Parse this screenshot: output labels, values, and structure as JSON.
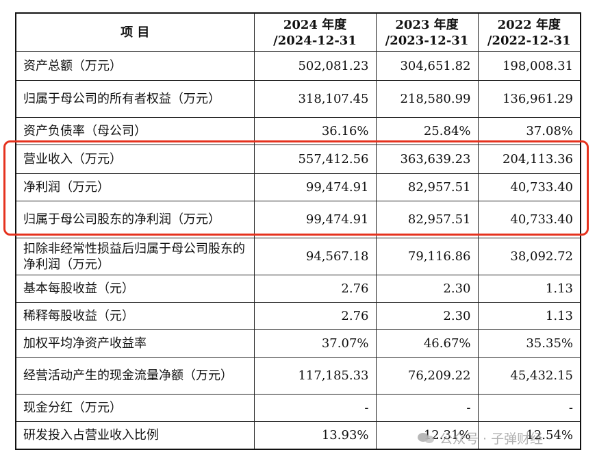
{
  "table": {
    "headers": {
      "item": "项  目",
      "col1_year": "2024 年度",
      "col1_date": "/2024-12-31",
      "col2_year": "2023 年度",
      "col2_date": "/2023-12-31",
      "col3_year": "2022 年度",
      "col3_date": "/2022-12-31"
    },
    "rows": [
      {
        "item": "资产总额（万元）",
        "v2024": "502,081.23",
        "v2023": "304,651.82",
        "v2022": "198,008.31"
      },
      {
        "item": "归属于母公司的所有者权益（万元）",
        "v2024": "318,107.45",
        "v2023": "218,580.99",
        "v2022": "136,961.29"
      },
      {
        "item": "资产负债率（母公司）",
        "v2024": "36.16%",
        "v2023": "25.84%",
        "v2022": "37.08%"
      },
      {
        "item": "营业收入（万元）",
        "v2024": "557,412.56",
        "v2023": "363,639.23",
        "v2022": "204,113.36"
      },
      {
        "item": "净利润（万元）",
        "v2024": "99,474.91",
        "v2023": "82,957.51",
        "v2022": "40,733.40"
      },
      {
        "item": "归属于母公司股东的净利润（万元）",
        "v2024": "99,474.91",
        "v2023": "82,957.51",
        "v2022": "40,733.40"
      },
      {
        "item": "扣除非经常性损益后归属于母公司股东的净利润（万元）",
        "v2024": "94,567.18",
        "v2023": "79,116.86",
        "v2022": "38,092.72"
      },
      {
        "item": "基本每股收益（元）",
        "v2024": "2.76",
        "v2023": "2.30",
        "v2022": "1.13"
      },
      {
        "item": "稀释每股收益（元）",
        "v2024": "2.76",
        "v2023": "2.30",
        "v2022": "1.13"
      },
      {
        "item": "加权平均净资产收益率",
        "v2024": "37.07%",
        "v2023": "46.67%",
        "v2022": "35.35%"
      },
      {
        "item": "经营活动产生的现金流量净额（万元）",
        "v2024": "117,185.33",
        "v2023": "76,209.22",
        "v2022": "45,432.15"
      },
      {
        "item": "现金分红（万元）",
        "v2024": "-",
        "v2023": "-",
        "v2022": "-"
      },
      {
        "item": "研发投入占营业收入比例",
        "v2024": "13.93%",
        "v2023": "12.31%",
        "v2022": "12.54%"
      }
    ]
  },
  "watermark": {
    "text": "公众号 · 子弹财经",
    "icon": "wechat-icon"
  },
  "colors": {
    "highlight_border": "#e5321e",
    "text": "#111111",
    "grid": "#222222"
  }
}
